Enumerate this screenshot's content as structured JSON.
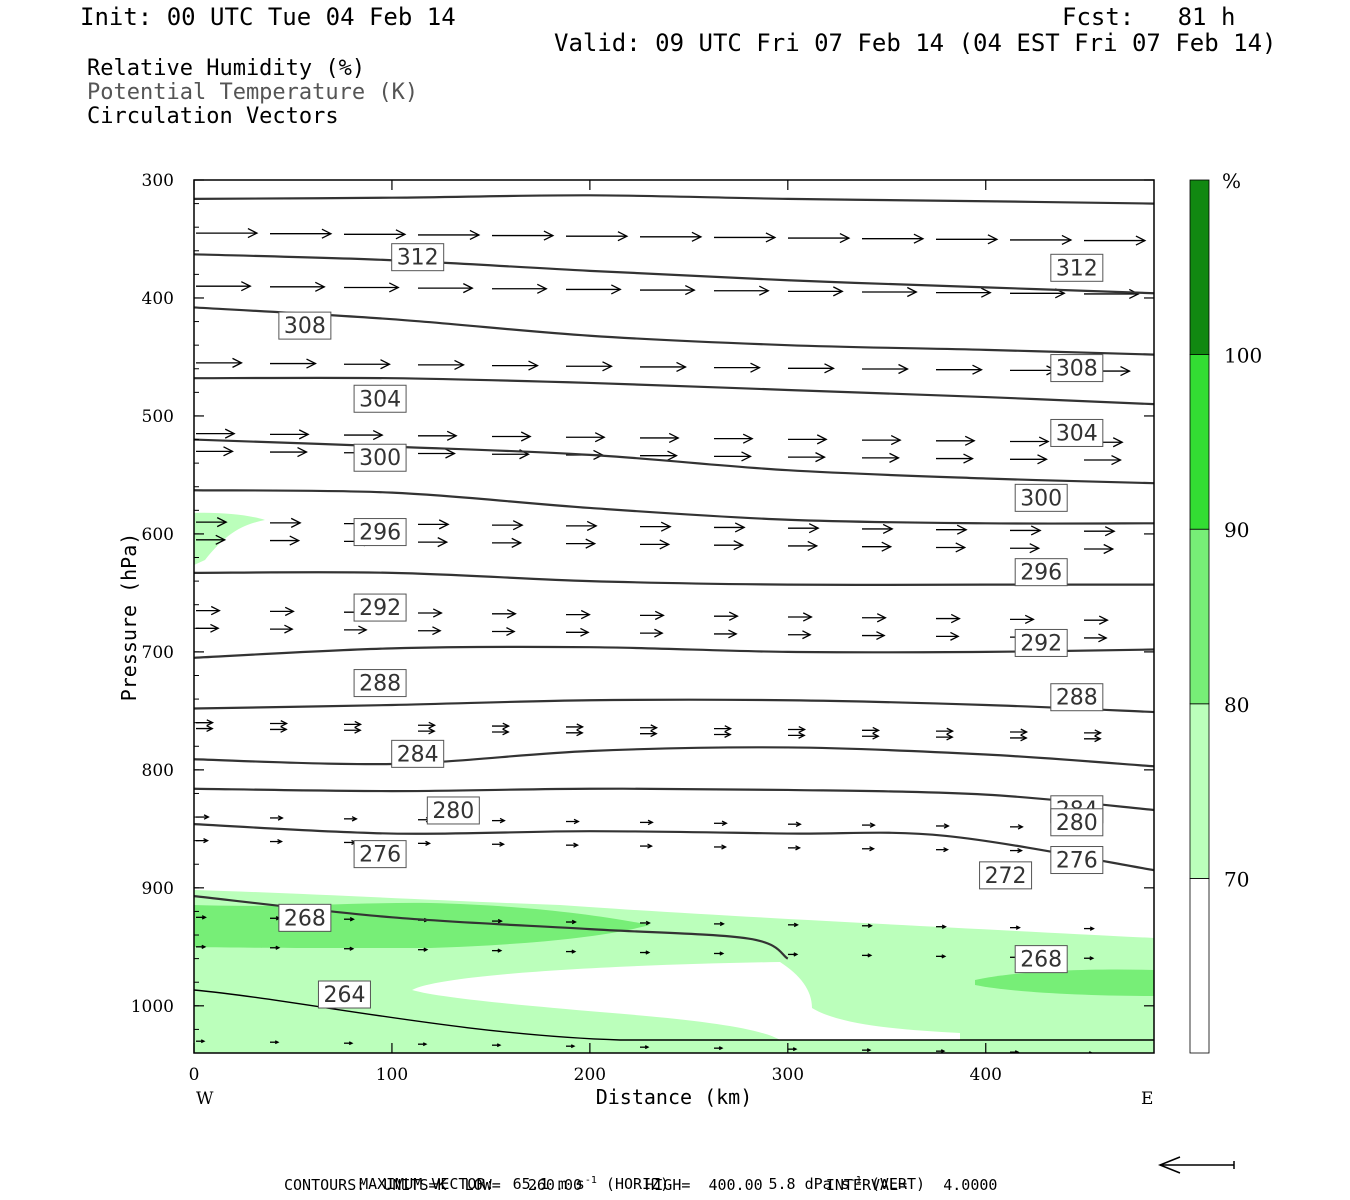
{
  "header": {
    "init": "Init: 00 UTC Tue 04 Feb 14",
    "fcst": "Fcst:   81 h",
    "valid": "Valid: 09 UTC Fri 07 Feb 14 (04 EST Fri 07 Feb 14)"
  },
  "legend": {
    "rh": "Relative Humidity (%)",
    "theta": "Potential Temperature (K)",
    "vectors": "Circulation Vectors"
  },
  "footer": {
    "max_vector_label": "MAXIMUM VECTOR:",
    "max_vector_horiz": "65.1 m s",
    "max_vector_horiz_suffix": "(HORIZ)",
    "max_vector_vert": "5.8 dPa s",
    "max_vector_vert_suffix": "(VERT)",
    "exponent": "-1",
    "contours_line": "CONTOURS:  UNITS=K  LOW=   260.00       HIGH=  400.00       INTERVAL=    4.0000"
  },
  "chart_data": {
    "type": "cross-section",
    "xlabel": "Distance (km)",
    "ylabel": "Pressure (hPa)",
    "x_range": [
      0,
      485
    ],
    "y_range": [
      300,
      1040
    ],
    "y_scale": "linear, inverted (pressure)",
    "x_ticks": [
      0,
      100,
      200,
      300,
      400
    ],
    "y_ticks": [
      300,
      400,
      500,
      600,
      700,
      800,
      900,
      1000
    ],
    "x_end_labels": {
      "left": "W",
      "right": "E"
    },
    "colorbar": {
      "unit": "%",
      "levels": [
        70,
        80,
        90,
        100
      ],
      "colors": [
        "#ffffff",
        "#bbffbb",
        "#77ee77",
        "#33dd33",
        "#118811"
      ]
    },
    "theta_contours": [
      {
        "value": 312,
        "points": [
          [
            0,
            316
          ],
          [
            100,
            315
          ],
          [
            200,
            313
          ],
          [
            300,
            316
          ],
          [
            400,
            318
          ],
          [
            485,
            320
          ]
        ],
        "label_positions": [
          [
            112,
            365
          ],
          [
            445,
            374
          ]
        ]
      },
      {
        "value": 308,
        "points": [
          [
            0,
            363
          ],
          [
            100,
            368
          ],
          [
            200,
            377
          ],
          [
            300,
            385
          ],
          [
            400,
            391
          ],
          [
            485,
            396
          ]
        ],
        "label_positions": [
          [
            55,
            423
          ],
          [
            445,
            459
          ]
        ]
      },
      {
        "value": 304,
        "points": [
          [
            0,
            408
          ],
          [
            100,
            418
          ],
          [
            200,
            432
          ],
          [
            300,
            440
          ],
          [
            400,
            444
          ],
          [
            485,
            448
          ]
        ],
        "label_positions": [
          [
            93,
            485
          ],
          [
            445,
            514
          ]
        ]
      },
      {
        "value": 300,
        "points": [
          [
            0,
            468
          ],
          [
            100,
            468
          ],
          [
            200,
            472
          ],
          [
            300,
            478
          ],
          [
            400,
            484
          ],
          [
            485,
            490
          ]
        ],
        "label_positions": [
          [
            93,
            535
          ],
          [
            427,
            569
          ]
        ]
      },
      {
        "value": 296,
        "points": [
          [
            0,
            520
          ],
          [
            100,
            526
          ],
          [
            200,
            533
          ],
          [
            300,
            546
          ],
          [
            400,
            553
          ],
          [
            485,
            557
          ]
        ],
        "label_positions": [
          [
            93,
            598
          ],
          [
            427,
            632
          ]
        ]
      },
      {
        "value": 292,
        "points": [
          [
            0,
            563
          ],
          [
            100,
            565
          ],
          [
            200,
            578
          ],
          [
            300,
            588
          ],
          [
            400,
            591
          ],
          [
            485,
            591
          ]
        ],
        "label_positions": [
          [
            93,
            662
          ],
          [
            427,
            692
          ]
        ]
      },
      {
        "value": 288,
        "points": [
          [
            0,
            633
          ],
          [
            100,
            633
          ],
          [
            200,
            640
          ],
          [
            300,
            643
          ],
          [
            400,
            643
          ],
          [
            485,
            643
          ]
        ],
        "label_positions": [
          [
            93,
            726
          ],
          [
            445,
            738
          ]
        ]
      },
      {
        "value": 284,
        "points": [
          [
            0,
            705
          ],
          [
            100,
            697
          ],
          [
            200,
            696
          ],
          [
            300,
            700
          ],
          [
            400,
            700
          ],
          [
            485,
            698
          ]
        ],
        "label_positions": [
          [
            112,
            786
          ],
          [
            445,
            833
          ]
        ]
      },
      {
        "value": 280,
        "points": [
          [
            0,
            748
          ],
          [
            100,
            745
          ],
          [
            200,
            741
          ],
          [
            300,
            741
          ],
          [
            400,
            745
          ],
          [
            485,
            751
          ]
        ],
        "label_positions": [
          [
            130,
            834
          ],
          [
            445,
            844
          ]
        ]
      },
      {
        "value": 276,
        "points": [
          [
            0,
            791
          ],
          [
            100,
            795
          ],
          [
            200,
            784
          ],
          [
            300,
            781
          ],
          [
            400,
            787
          ],
          [
            485,
            797
          ]
        ],
        "label_positions": [
          [
            93,
            871
          ],
          [
            445,
            876
          ]
        ]
      },
      {
        "value": 272,
        "points": [
          [
            0,
            816
          ],
          [
            100,
            818
          ],
          [
            200,
            816
          ],
          [
            300,
            817
          ],
          [
            400,
            821
          ],
          [
            485,
            834
          ]
        ],
        "label_positions": [
          [
            409,
            889
          ]
        ]
      },
      {
        "value": 268,
        "points": [
          [
            0,
            846
          ],
          [
            100,
            854
          ],
          [
            200,
            852
          ],
          [
            300,
            854
          ],
          [
            380,
            856
          ],
          [
            485,
            885
          ]
        ],
        "label_positions": [
          [
            55,
            925
          ],
          [
            427,
            960
          ]
        ]
      },
      {
        "value": 264,
        "points": [
          [
            0,
            907
          ],
          [
            100,
            925
          ],
          [
            200,
            935
          ],
          [
            280,
            943
          ],
          [
            300,
            960
          ]
        ],
        "label_positions": [
          [
            75,
            990
          ]
        ]
      }
    ],
    "rh_shading": [
      {
        "level": "70-80",
        "region": "upper-left",
        "x": [
          0,
          35
        ],
        "p": [
          585,
          625
        ]
      },
      {
        "level": "70-80",
        "region": "low levels",
        "x": [
          0,
          485
        ],
        "p": [
          898,
          1035
        ]
      },
      {
        "level": "80-90",
        "region": "lower-left",
        "x": [
          0,
          230
        ],
        "p": [
          910,
          950
        ]
      },
      {
        "level": "80-90",
        "region": "lower-right",
        "x": [
          395,
          485
        ],
        "p": [
          970,
          990
        ]
      }
    ],
    "vector_rows_hpa": [
      345,
      390,
      455,
      515,
      530,
      590,
      605,
      665,
      680,
      760,
      765,
      840,
      860,
      925,
      950,
      1030
    ],
    "vectors_description": "westerly (left-to-right) circulation vectors; strongest aloft, weakening toward the surface"
  }
}
